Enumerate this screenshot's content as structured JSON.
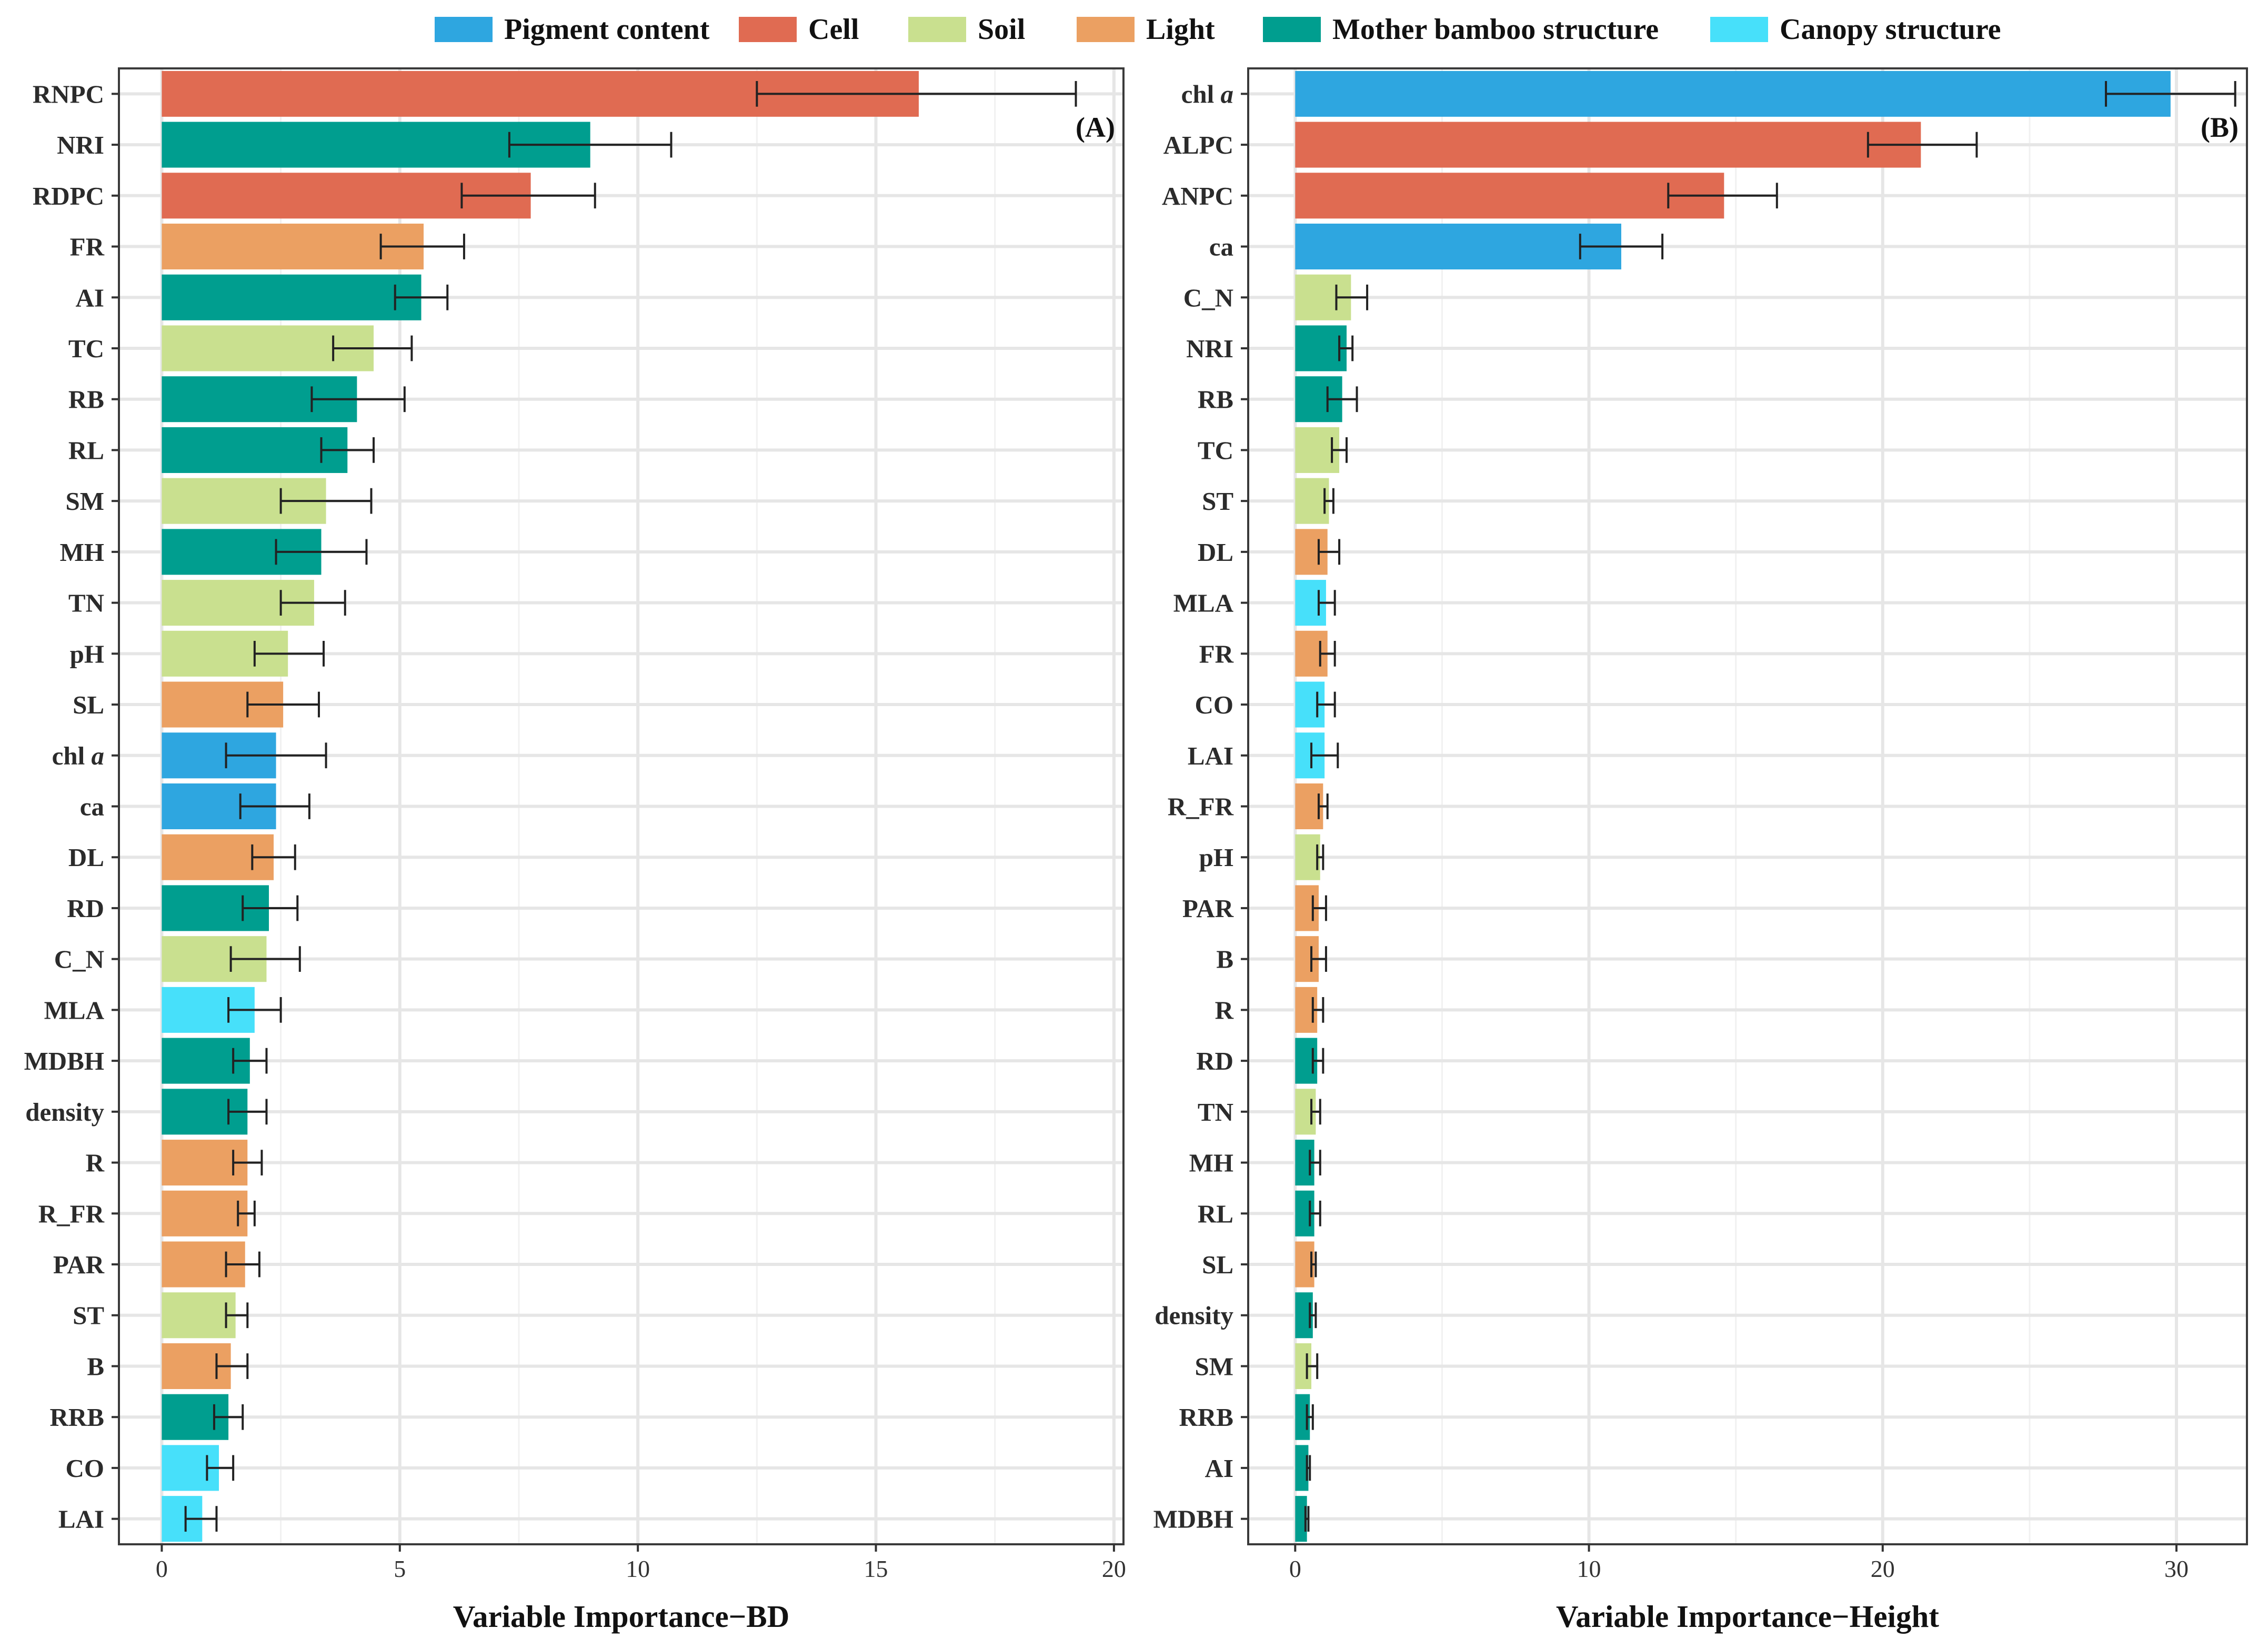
{
  "legend": [
    {
      "name": "Pigment content",
      "color": "#2ea6e0"
    },
    {
      "name": "Cell",
      "color": "#e06b52"
    },
    {
      "name": "Soil",
      "color": "#c9e08f"
    },
    {
      "name": "Light",
      "color": "#eba062"
    },
    {
      "name": "Mother bamboo structure",
      "color": "#009e8f"
    },
    {
      "name": "Canopy structure",
      "color": "#47e0fa"
    }
  ],
  "chart_data": [
    {
      "type": "bar",
      "orientation": "horizontal",
      "panel_label": "(A)",
      "xlabel": "Variable Importance−BD",
      "xlim": [
        -0.9,
        20.2
      ],
      "xticks": [
        0,
        5,
        10,
        15,
        20
      ],
      "grid": true,
      "categories": [
        "RNPC",
        "NRI",
        "RDPC",
        "FR",
        "AI",
        "TC",
        "RB",
        "RL",
        "SM",
        "MH",
        "TN",
        "pH",
        "SL",
        "chl a",
        "ca",
        "DL",
        "RD",
        "C_N",
        "MLA",
        "MDBH",
        "density",
        "R",
        "R_FR",
        "PAR",
        "ST",
        "B",
        "RRB",
        "CO",
        "LAI"
      ],
      "groups": [
        "Cell",
        "Mother bamboo structure",
        "Cell",
        "Light",
        "Mother bamboo structure",
        "Soil",
        "Mother bamboo structure",
        "Mother bamboo structure",
        "Soil",
        "Mother bamboo structure",
        "Soil",
        "Soil",
        "Light",
        "Pigment content",
        "Pigment content",
        "Light",
        "Mother bamboo structure",
        "Soil",
        "Canopy structure",
        "Mother bamboo structure",
        "Mother bamboo structure",
        "Light",
        "Light",
        "Light",
        "Soil",
        "Light",
        "Mother bamboo structure",
        "Canopy structure",
        "Canopy structure"
      ],
      "values": [
        15.9,
        9.0,
        7.75,
        5.5,
        5.45,
        4.45,
        4.1,
        3.9,
        3.45,
        3.35,
        3.2,
        2.65,
        2.55,
        2.4,
        2.4,
        2.35,
        2.25,
        2.2,
        1.95,
        1.85,
        1.8,
        1.8,
        1.8,
        1.75,
        1.55,
        1.45,
        1.4,
        1.2,
        0.85
      ],
      "err_low": [
        12.5,
        7.3,
        6.3,
        4.6,
        4.9,
        3.6,
        3.15,
        3.35,
        2.5,
        2.4,
        2.5,
        1.95,
        1.8,
        1.35,
        1.65,
        1.9,
        1.7,
        1.45,
        1.4,
        1.5,
        1.4,
        1.5,
        1.6,
        1.35,
        1.35,
        1.15,
        1.1,
        0.95,
        0.5
      ],
      "err_high": [
        19.2,
        10.7,
        9.1,
        6.35,
        6.0,
        5.25,
        5.1,
        4.45,
        4.4,
        4.3,
        3.85,
        3.4,
        3.3,
        3.45,
        3.1,
        2.8,
        2.85,
        2.9,
        2.5,
        2.2,
        2.2,
        2.1,
        1.95,
        2.05,
        1.8,
        1.8,
        1.7,
        1.5,
        1.15
      ]
    },
    {
      "type": "bar",
      "orientation": "horizontal",
      "panel_label": "(B)",
      "xlabel": "Variable Importance−Height",
      "xlim": [
        -1.6,
        32.4
      ],
      "xticks": [
        0,
        10,
        20,
        30
      ],
      "grid": true,
      "categories": [
        "chl a",
        "ALPC",
        "ANPC",
        "ca",
        "C_N",
        "NRI",
        "RB",
        "TC",
        "ST",
        "DL",
        "MLA",
        "FR",
        "CO",
        "LAI",
        "R_FR",
        "pH",
        "PAR",
        "B",
        "R",
        "RD",
        "TN",
        "MH",
        "RL",
        "SL",
        "density",
        "SM",
        "RRB",
        "AI",
        "MDBH"
      ],
      "groups": [
        "Pigment content",
        "Cell",
        "Cell",
        "Pigment content",
        "Soil",
        "Mother bamboo structure",
        "Mother bamboo structure",
        "Soil",
        "Soil",
        "Light",
        "Canopy structure",
        "Light",
        "Canopy structure",
        "Canopy structure",
        "Light",
        "Soil",
        "Light",
        "Light",
        "Light",
        "Mother bamboo structure",
        "Soil",
        "Mother bamboo structure",
        "Mother bamboo structure",
        "Light",
        "Mother bamboo structure",
        "Soil",
        "Mother bamboo structure",
        "Mother bamboo structure",
        "Mother bamboo structure"
      ],
      "values": [
        29.8,
        21.3,
        14.6,
        11.1,
        1.9,
        1.75,
        1.6,
        1.5,
        1.15,
        1.1,
        1.05,
        1.1,
        1.0,
        1.0,
        0.95,
        0.85,
        0.8,
        0.8,
        0.75,
        0.75,
        0.7,
        0.65,
        0.65,
        0.65,
        0.6,
        0.55,
        0.5,
        0.45,
        0.4
      ],
      "err_low": [
        27.6,
        19.5,
        12.7,
        9.7,
        1.4,
        1.5,
        1.1,
        1.25,
        1.0,
        0.8,
        0.8,
        0.85,
        0.75,
        0.55,
        0.8,
        0.75,
        0.6,
        0.55,
        0.6,
        0.6,
        0.55,
        0.5,
        0.5,
        0.55,
        0.5,
        0.4,
        0.4,
        0.4,
        0.35
      ],
      "err_high": [
        32.0,
        23.2,
        16.4,
        12.5,
        2.45,
        1.95,
        2.1,
        1.75,
        1.3,
        1.5,
        1.35,
        1.35,
        1.35,
        1.45,
        1.1,
        0.95,
        1.05,
        1.05,
        0.95,
        0.95,
        0.85,
        0.85,
        0.85,
        0.7,
        0.7,
        0.75,
        0.6,
        0.5,
        0.45
      ]
    }
  ]
}
